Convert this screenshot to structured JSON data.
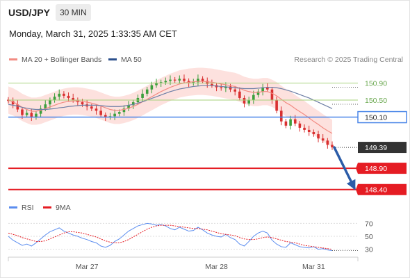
{
  "header": {
    "pair": "USD/JPY",
    "timeframe": "30 MIN",
    "datetime": "Monday, March 31, 2025 1:33:35 AM CET"
  },
  "legend": {
    "ma20": "MA 20 + Bollinger Bands",
    "ma50": "MA 50",
    "rsi": "RSI",
    "rsi_ma": "9MA",
    "credit": "Research © 2025 Trading Central"
  },
  "colors": {
    "ma20": "#f28b82",
    "bands_fill": "#fcd9d6",
    "ma50": "#6e7fa6",
    "support_red": "#e51c23",
    "pivot_blue": "#4a86e8",
    "resistance_green": "#a5d17a",
    "last_price_bg": "#333333",
    "arrow": "#2b5ca8",
    "candle_up": "#3c9f3c",
    "candle_down": "#d93030",
    "rsi_line": "#5b8def",
    "rsi_ma": "#e51c23"
  },
  "chart_data": [
    {
      "type": "line",
      "title": "USD/JPY 30 MIN",
      "x_tick_labels": [
        "Mar 27",
        "Mar 28",
        "Mar 31"
      ],
      "ylim": [
        148.2,
        151.3
      ],
      "levels": [
        {
          "label": "150.90",
          "value": 150.9,
          "kind": "resistance"
        },
        {
          "label": "150.50",
          "value": 150.5,
          "kind": "resistance"
        },
        {
          "label": "150.10",
          "value": 150.1,
          "kind": "pivot"
        },
        {
          "label": "149.39",
          "value": 149.39,
          "kind": "last"
        },
        {
          "label": "148.90",
          "value": 148.9,
          "kind": "support"
        },
        {
          "label": "148.40",
          "value": 148.4,
          "kind": "support"
        }
      ],
      "close_series": [
        150.48,
        150.4,
        150.28,
        150.15,
        150.2,
        150.1,
        150.18,
        150.3,
        150.4,
        150.5,
        150.58,
        150.65,
        150.6,
        150.55,
        150.5,
        150.45,
        150.4,
        150.35,
        150.3,
        150.25,
        150.15,
        150.1,
        150.12,
        150.18,
        150.22,
        150.3,
        150.38,
        150.45,
        150.55,
        150.65,
        150.75,
        150.85,
        150.9,
        150.92,
        150.95,
        150.98,
        150.96,
        151.0,
        150.95,
        150.9,
        150.92,
        151.0,
        150.95,
        150.88,
        150.85,
        150.8,
        150.78,
        150.82,
        150.75,
        150.7,
        150.55,
        150.42,
        150.5,
        150.62,
        150.7,
        150.8,
        150.75,
        150.5,
        150.25,
        150.0,
        149.9,
        150.05,
        149.95,
        149.85,
        149.8,
        149.75,
        149.7,
        149.6,
        149.55,
        149.45,
        149.39
      ],
      "ma20": [
        150.5,
        150.46,
        150.4,
        150.33,
        150.28,
        150.24,
        150.24,
        150.26,
        150.3,
        150.34,
        150.38,
        150.42,
        150.45,
        150.47,
        150.48,
        150.48,
        150.47,
        150.45,
        150.43,
        150.4,
        150.36,
        150.32,
        150.28,
        150.26,
        150.26,
        150.28,
        150.31,
        150.35,
        150.4,
        150.46,
        150.52,
        150.58,
        150.64,
        150.7,
        150.75,
        150.8,
        150.84,
        150.88,
        150.9,
        150.92,
        150.93,
        150.94,
        150.94,
        150.93,
        150.92,
        150.9,
        150.88,
        150.86,
        150.84,
        150.82,
        150.78,
        150.73,
        150.7,
        150.68,
        150.68,
        150.7,
        150.7,
        150.66,
        150.6,
        150.52,
        150.44,
        150.38,
        150.3,
        150.23,
        150.16,
        150.08,
        150.0,
        149.93,
        149.85,
        149.78,
        149.72
      ],
      "ma50": [
        150.4,
        150.38,
        150.36,
        150.33,
        150.31,
        150.29,
        150.28,
        150.28,
        150.28,
        150.29,
        150.3,
        150.32,
        150.33,
        150.35,
        150.36,
        150.37,
        150.38,
        150.38,
        150.38,
        150.38,
        150.37,
        150.36,
        150.35,
        150.35,
        150.35,
        150.36,
        150.38,
        150.4,
        150.43,
        150.46,
        150.5,
        150.54,
        150.58,
        150.62,
        150.66,
        150.7,
        150.73,
        150.76,
        150.78,
        150.8,
        150.82,
        150.83,
        150.84,
        150.84,
        150.84,
        150.83,
        150.82,
        150.81,
        150.8,
        150.79,
        150.78,
        150.77,
        150.77,
        150.77,
        150.78,
        150.79,
        150.8,
        150.8,
        150.79,
        150.77,
        150.74,
        150.71,
        150.67,
        150.63,
        150.59,
        150.55,
        150.5,
        150.45,
        150.4,
        150.35,
        150.3
      ],
      "band_width": 0.32
    },
    {
      "type": "line",
      "title": "RSI",
      "ylim": [
        20,
        80
      ],
      "y_tick_labels": [
        "70",
        "50",
        "30"
      ],
      "y_ticks": [
        70,
        50,
        30
      ],
      "series": [
        {
          "name": "RSI",
          "values": [
            50,
            44,
            40,
            36,
            38,
            35,
            40,
            46,
            52,
            57,
            60,
            63,
            58,
            55,
            52,
            50,
            47,
            45,
            42,
            40,
            35,
            33,
            36,
            42,
            46,
            52,
            58,
            62,
            66,
            68,
            70,
            69,
            67,
            68,
            66,
            62,
            60,
            64,
            61,
            58,
            59,
            64,
            60,
            55,
            52,
            50,
            49,
            53,
            48,
            45,
            38,
            35,
            42,
            50,
            55,
            58,
            55,
            44,
            38,
            34,
            33,
            40,
            37,
            34,
            33,
            32,
            34,
            30,
            31,
            29,
            28
          ]
        },
        {
          "name": "9MA",
          "values": [
            55,
            53,
            51,
            48,
            46,
            44,
            42,
            42,
            43,
            46,
            49,
            52,
            55,
            57,
            57,
            56,
            55,
            53,
            51,
            49,
            46,
            43,
            41,
            40,
            40,
            42,
            45,
            49,
            53,
            57,
            61,
            64,
            66,
            67,
            67,
            67,
            66,
            65,
            64,
            63,
            62,
            62,
            61,
            60,
            58,
            56,
            54,
            53,
            52,
            51,
            48,
            46,
            45,
            45,
            46,
            48,
            49,
            48,
            46,
            44,
            42,
            41,
            40,
            38,
            36,
            35,
            34,
            33,
            32,
            31,
            30
          ]
        }
      ]
    }
  ]
}
